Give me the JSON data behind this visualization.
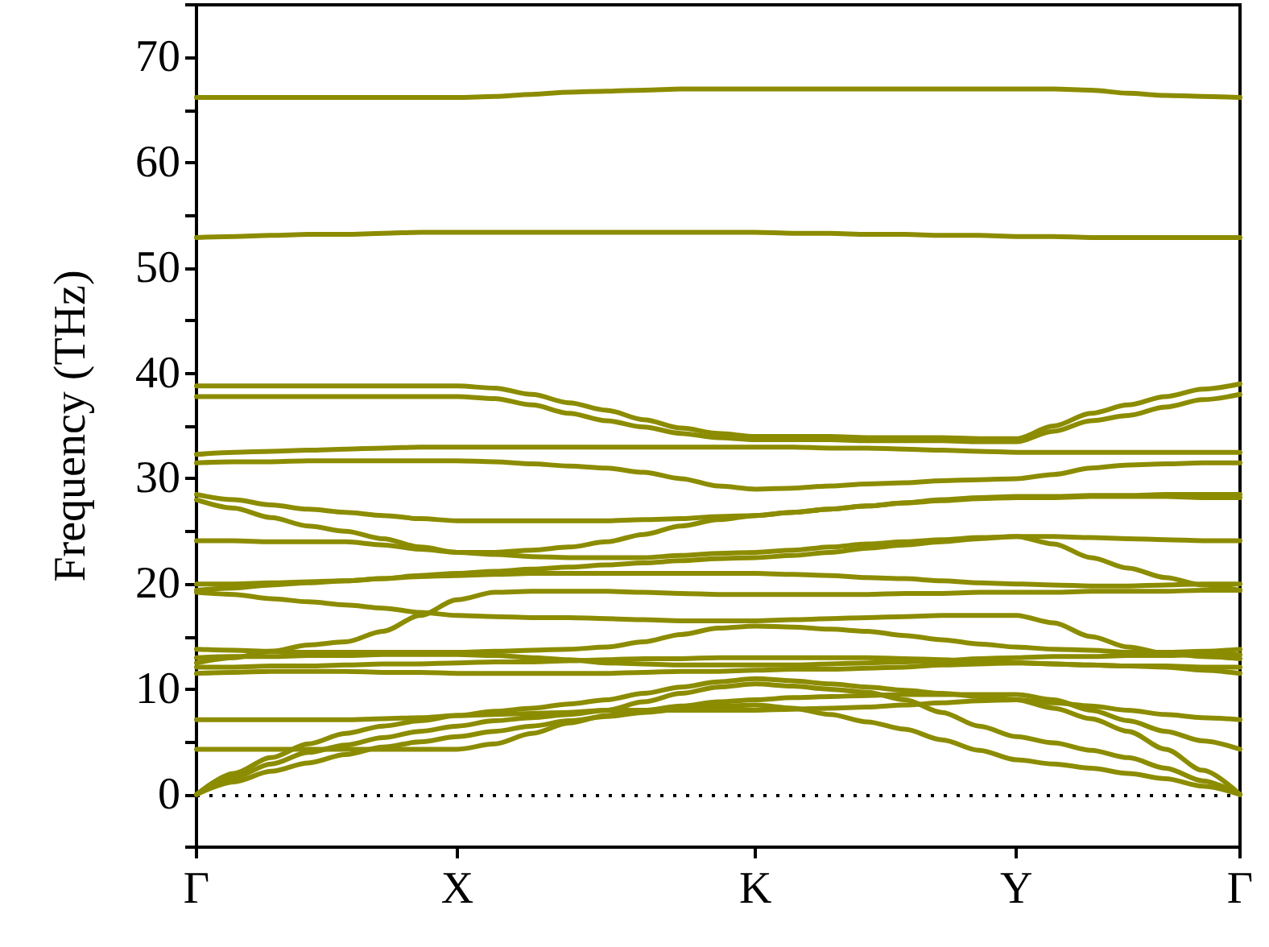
{
  "chart_data": {
    "type": "line",
    "ylabel": "Frequency (THz)",
    "ylim": [
      -5,
      75
    ],
    "yticks": [
      {
        "value": -5,
        "label": null
      },
      0,
      {
        "value": 5,
        "label": null
      },
      10,
      {
        "value": 15,
        "label": null
      },
      20,
      {
        "value": 25,
        "label": null
      },
      30,
      {
        "value": 35,
        "label": null
      },
      40,
      {
        "value": 45,
        "label": null
      },
      50,
      {
        "value": 55,
        "label": null
      },
      60,
      {
        "value": 65,
        "label": null
      },
      70,
      {
        "value": 75,
        "label": null
      }
    ],
    "categories": [
      "Γ",
      null,
      null,
      null,
      null,
      null,
      null,
      "X",
      null,
      null,
      null,
      null,
      null,
      null,
      null,
      "K",
      null,
      null,
      null,
      null,
      null,
      null,
      "Y",
      null,
      null,
      null,
      null,
      null,
      "Γ"
    ],
    "grid": false,
    "marker": "none",
    "line_style": "solid",
    "ref_lines": [
      {
        "axis": "y",
        "value": 0,
        "label": null,
        "color": "#000000",
        "line_style": "dotted"
      }
    ],
    "series": [
      {
        "color": "#8c8c00",
        "values": [
          0,
          1.2,
          2.2,
          3.0,
          3.8,
          4.5,
          5.0,
          5.5,
          6.0,
          6.5,
          7.0,
          7.4,
          7.8,
          8.1,
          8.4,
          8.5,
          8.2,
          7.6,
          6.9,
          6.2,
          5.2,
          4.2,
          3.3,
          2.9,
          2.5,
          2.0,
          1.5,
          0.8,
          0
        ]
      },
      {
        "color": "#8c8c00",
        "values": [
          0,
          1.6,
          2.9,
          4.0,
          4.7,
          5.4,
          6.0,
          6.5,
          7.0,
          7.3,
          7.6,
          8.0,
          8.8,
          9.6,
          10.2,
          10.5,
          10.3,
          10.0,
          9.7,
          9.0,
          7.8,
          6.5,
          5.5,
          4.9,
          4.2,
          3.5,
          2.5,
          1.3,
          0
        ]
      },
      {
        "color": "#8c8c00",
        "values": [
          0,
          2.0,
          3.5,
          4.8,
          5.8,
          6.5,
          7.0,
          7.5,
          7.9,
          8.2,
          8.6,
          9.0,
          9.6,
          10.2,
          10.7,
          11.0,
          10.8,
          10.5,
          10.2,
          9.9,
          9.6,
          9.3,
          9.0,
          8.2,
          7.2,
          6.0,
          4.3,
          2.3,
          0
        ]
      },
      {
        "color": "#8c8c00",
        "values": [
          4.3,
          4.3,
          4.3,
          4.3,
          4.3,
          4.3,
          4.3,
          4.3,
          4.8,
          5.8,
          6.8,
          7.5,
          8.0,
          8.4,
          8.8,
          9.0,
          9.2,
          9.3,
          9.4,
          9.5,
          9.5,
          9.5,
          9.5,
          9.0,
          8.0,
          7.0,
          6.0,
          5.1,
          4.3
        ]
      },
      {
        "color": "#8c8c00",
        "values": [
          7.1,
          7.1,
          7.1,
          7.1,
          7.1,
          7.2,
          7.3,
          7.5,
          7.6,
          7.7,
          7.8,
          8.0,
          8.0,
          8.0,
          8.0,
          8.0,
          8.1,
          8.2,
          8.3,
          8.5,
          8.7,
          8.9,
          9.0,
          8.7,
          8.4,
          8.0,
          7.6,
          7.3,
          7.1
        ]
      },
      {
        "color": "#8c8c00",
        "values": [
          12.1,
          12.1,
          12.2,
          12.2,
          12.3,
          12.4,
          12.4,
          12.5,
          12.6,
          12.6,
          12.7,
          12.8,
          12.9,
          12.9,
          13.0,
          13.0,
          13.0,
          13.0,
          13.0,
          12.9,
          12.8,
          12.6,
          12.5,
          12.4,
          12.3,
          12.2,
          12.2,
          12.1,
          12.1
        ]
      },
      {
        "color": "#8c8c00",
        "values": [
          11.5,
          11.6,
          11.7,
          11.7,
          11.7,
          11.6,
          11.6,
          11.5,
          11.5,
          11.5,
          11.5,
          11.5,
          11.6,
          11.7,
          11.7,
          11.8,
          11.9,
          11.9,
          12.0,
          12.1,
          12.3,
          12.4,
          12.5,
          12.4,
          12.3,
          12.2,
          12.1,
          11.8,
          11.5
        ]
      },
      {
        "color": "#8c8c00",
        "values": [
          13.0,
          13.1,
          13.1,
          13.2,
          13.2,
          13.3,
          13.3,
          13.3,
          13.2,
          13.0,
          12.8,
          12.5,
          12.4,
          12.3,
          12.3,
          12.3,
          12.3,
          12.4,
          12.5,
          12.6,
          12.7,
          12.9,
          13.0,
          13.1,
          13.1,
          13.2,
          13.2,
          13.3,
          13.3
        ]
      },
      {
        "color": "#8c8c00",
        "values": [
          13.8,
          13.7,
          13.6,
          13.5,
          13.5,
          13.5,
          13.5,
          13.5,
          13.6,
          13.7,
          13.8,
          14.0,
          14.5,
          15.2,
          15.8,
          16.0,
          15.9,
          15.7,
          15.5,
          15.1,
          14.7,
          14.3,
          14.0,
          13.8,
          13.7,
          13.5,
          13.5,
          13.6,
          13.8
        ]
      },
      {
        "color": "#8c8c00",
        "values": [
          12.5,
          13.0,
          13.6,
          14.2,
          14.5,
          15.5,
          17.0,
          18.5,
          19.2,
          19.3,
          19.3,
          19.3,
          19.2,
          19.1,
          19.0,
          19.0,
          19.0,
          19.0,
          19.0,
          19.1,
          19.1,
          19.2,
          19.2,
          19.2,
          19.3,
          19.3,
          19.3,
          19.4,
          19.4
        ]
      },
      {
        "color": "#8c8c00",
        "values": [
          19.2,
          19.0,
          18.6,
          18.3,
          18.0,
          17.7,
          17.3,
          17.0,
          16.9,
          16.8,
          16.8,
          16.7,
          16.6,
          16.5,
          16.5,
          16.5,
          16.6,
          16.7,
          16.8,
          16.9,
          17.0,
          17.0,
          17.0,
          16.3,
          15.0,
          14.0,
          13.4,
          13.1,
          12.9
        ]
      },
      {
        "color": "#8c8c00",
        "values": [
          19.4,
          19.6,
          19.9,
          20.1,
          20.3,
          20.5,
          20.8,
          21.0,
          21.2,
          21.4,
          21.6,
          21.8,
          22.0,
          22.2,
          22.4,
          22.5,
          22.7,
          23.0,
          23.4,
          23.7,
          24.0,
          24.3,
          24.5,
          23.8,
          22.5,
          21.5,
          20.6,
          19.9,
          19.4
        ]
      },
      {
        "color": "#8c8c00",
        "values": [
          20.0,
          20.0,
          20.1,
          20.2,
          20.3,
          20.5,
          20.7,
          20.8,
          20.9,
          21.0,
          21.0,
          21.0,
          21.0,
          21.0,
          21.0,
          21.0,
          20.9,
          20.8,
          20.6,
          20.5,
          20.3,
          20.1,
          20.0,
          19.9,
          19.8,
          19.8,
          19.9,
          20.0,
          20.0
        ]
      },
      {
        "color": "#8c8c00",
        "values": [
          24.1,
          24.1,
          24.0,
          24.0,
          24.0,
          23.7,
          23.3,
          23.0,
          23.0,
          23.2,
          23.5,
          24.0,
          24.7,
          25.5,
          26.1,
          26.5,
          26.8,
          27.1,
          27.4,
          27.7,
          28.0,
          28.2,
          28.3,
          28.3,
          28.4,
          28.4,
          28.5,
          28.5,
          28.5
        ]
      },
      {
        "color": "#8c8c00",
        "values": [
          28.0,
          27.2,
          26.3,
          25.5,
          25.0,
          24.3,
          23.5,
          23.0,
          22.8,
          22.6,
          22.5,
          22.5,
          22.5,
          22.7,
          22.9,
          23.0,
          23.2,
          23.5,
          23.8,
          24.0,
          24.2,
          24.4,
          24.5,
          24.5,
          24.4,
          24.3,
          24.2,
          24.1,
          24.1
        ]
      },
      {
        "color": "#8c8c00",
        "values": [
          28.5,
          28.0,
          27.5,
          27.1,
          26.8,
          26.5,
          26.2,
          26.0,
          26.0,
          26.0,
          26.0,
          26.0,
          26.1,
          26.2,
          26.4,
          26.5,
          26.8,
          27.1,
          27.4,
          27.7,
          27.9,
          28.1,
          28.2,
          28.2,
          28.3,
          28.3,
          28.3,
          28.2,
          28.2
        ]
      },
      {
        "color": "#8c8c00",
        "values": [
          31.5,
          31.6,
          31.6,
          31.7,
          31.7,
          31.7,
          31.7,
          31.7,
          31.6,
          31.4,
          31.2,
          31.0,
          30.6,
          30.0,
          29.3,
          29.0,
          29.1,
          29.3,
          29.5,
          29.6,
          29.8,
          29.9,
          30.0,
          30.4,
          31.0,
          31.3,
          31.4,
          31.5,
          31.5
        ]
      },
      {
        "color": "#8c8c00",
        "values": [
          32.3,
          32.5,
          32.6,
          32.7,
          32.8,
          32.9,
          33.0,
          33.0,
          33.0,
          33.0,
          33.0,
          33.0,
          33.0,
          33.0,
          33.0,
          33.0,
          33.0,
          32.9,
          32.9,
          32.8,
          32.7,
          32.6,
          32.5,
          32.5,
          32.5,
          32.5,
          32.5,
          32.5,
          32.5
        ]
      },
      {
        "color": "#8c8c00",
        "values": [
          37.8,
          37.8,
          37.8,
          37.8,
          37.8,
          37.8,
          37.8,
          37.8,
          37.6,
          37.0,
          36.2,
          35.5,
          34.9,
          34.3,
          33.9,
          33.7,
          33.7,
          33.7,
          33.6,
          33.6,
          33.6,
          33.5,
          33.5,
          34.5,
          35.5,
          36.0,
          36.8,
          37.5,
          38.0
        ]
      },
      {
        "color": "#8c8c00",
        "values": [
          38.8,
          38.8,
          38.8,
          38.8,
          38.8,
          38.8,
          38.8,
          38.8,
          38.6,
          38.0,
          37.2,
          36.5,
          35.6,
          34.8,
          34.3,
          34.0,
          34.0,
          34.0,
          33.9,
          33.9,
          33.9,
          33.8,
          33.8,
          35.0,
          36.2,
          37.0,
          37.8,
          38.5,
          39.0
        ]
      },
      {
        "color": "#8c8c00",
        "values": [
          52.9,
          53.0,
          53.1,
          53.2,
          53.2,
          53.3,
          53.4,
          53.4,
          53.4,
          53.4,
          53.4,
          53.4,
          53.4,
          53.4,
          53.4,
          53.4,
          53.3,
          53.3,
          53.2,
          53.2,
          53.1,
          53.1,
          53.0,
          53.0,
          52.9,
          52.9,
          52.9,
          52.9,
          52.9
        ]
      },
      {
        "color": "#8c8c00",
        "values": [
          66.2,
          66.2,
          66.2,
          66.2,
          66.2,
          66.2,
          66.2,
          66.2,
          66.3,
          66.5,
          66.7,
          66.8,
          66.9,
          67.0,
          67.0,
          67.0,
          67.0,
          67.0,
          67.0,
          67.0,
          67.0,
          67.0,
          67.0,
          67.0,
          66.9,
          66.6,
          66.4,
          66.3,
          66.2
        ]
      }
    ]
  }
}
